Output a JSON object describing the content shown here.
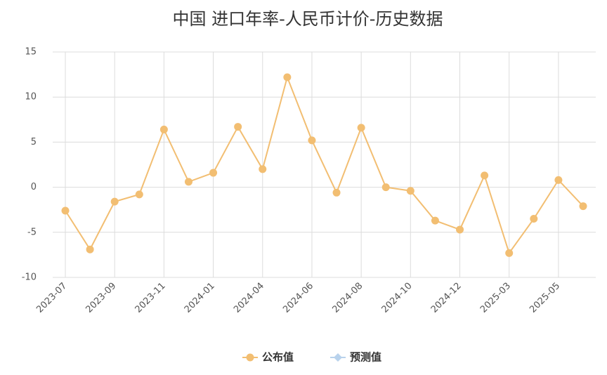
{
  "chart_data": {
    "type": "line",
    "title": "中国 进口年率-人民币计价-历史数据",
    "categories": [
      "2023-07",
      null,
      "2023-09",
      null,
      "2023-11",
      null,
      "2024-01",
      null,
      "2024-04",
      null,
      "2024-06",
      null,
      "2024-08",
      null,
      "2024-10",
      null,
      "2024-12",
      null,
      "2025-03",
      null,
      "2025-05",
      null
    ],
    "series": [
      {
        "name": "公布值",
        "color": "#f2be72",
        "values": [
          -2.6,
          -6.9,
          -1.6,
          -0.8,
          6.4,
          0.6,
          1.6,
          6.7,
          2.0,
          12.2,
          5.2,
          -0.6,
          6.6,
          0.0,
          -0.4,
          -3.7,
          -4.7,
          1.3,
          -7.3,
          -3.5,
          0.8,
          -2.1
        ]
      },
      {
        "name": "预测值",
        "color": "#b8d2ec",
        "values": [
          null,
          null,
          null,
          null,
          null,
          null,
          null,
          null,
          null,
          null,
          null,
          null,
          null,
          null,
          null,
          null,
          null,
          null,
          null,
          null,
          null,
          null
        ]
      }
    ],
    "ylim": [
      -10,
      15
    ],
    "yticks": [
      -10,
      -5,
      0,
      5,
      10,
      15
    ],
    "grid": true,
    "legend": "bottom"
  }
}
